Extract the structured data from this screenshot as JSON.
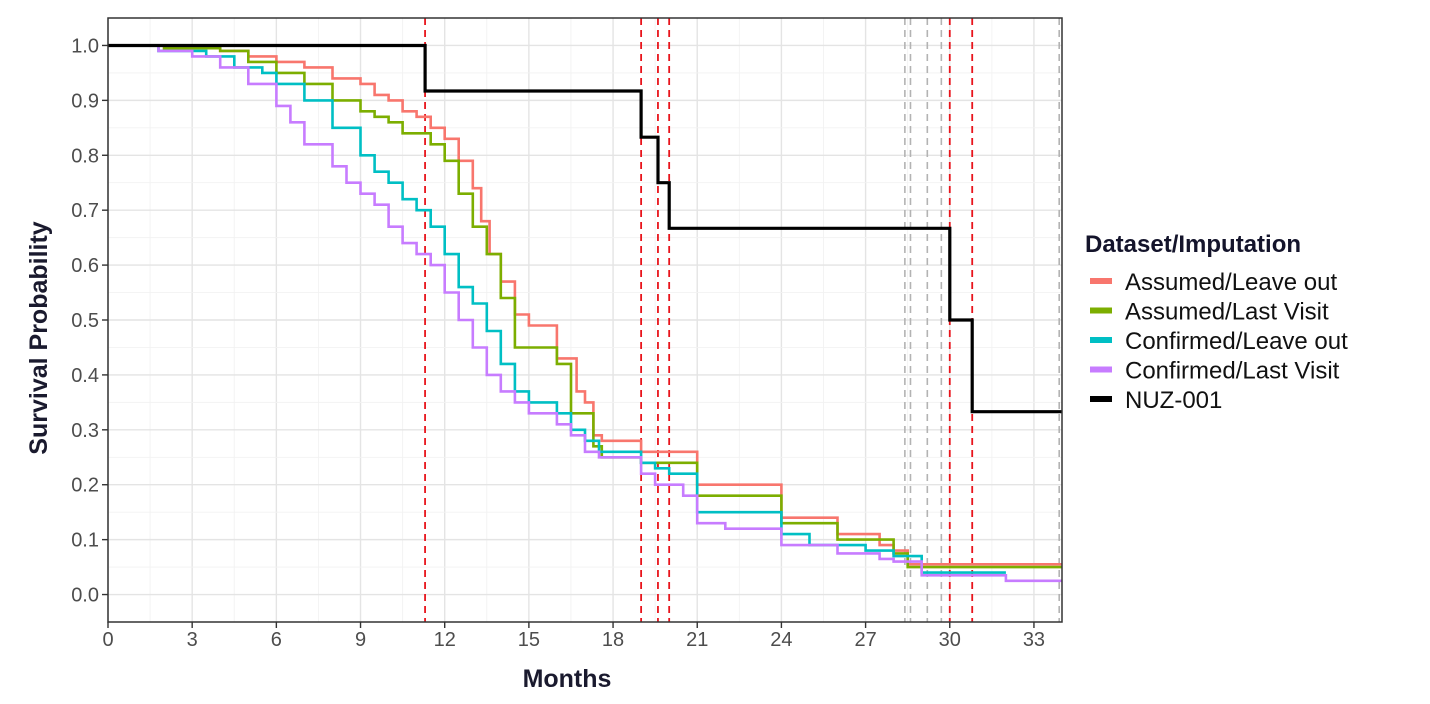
{
  "chart_data": {
    "type": "line",
    "subtype": "kaplan-meier step curves",
    "xlabel": "Months",
    "ylabel": "Survival Probability",
    "xlim": [
      0,
      34
    ],
    "ylim": [
      -0.05,
      1.05
    ],
    "xticks": [
      0,
      3,
      6,
      9,
      12,
      15,
      18,
      21,
      24,
      27,
      30,
      33
    ],
    "yticks": [
      0.0,
      0.1,
      0.2,
      0.3,
      0.4,
      0.5,
      0.6,
      0.7,
      0.8,
      0.9,
      1.0
    ],
    "ytick_labels": [
      "0.0",
      "0.1",
      "0.2",
      "0.3",
      "0.4",
      "0.5",
      "0.6",
      "0.7",
      "0.8",
      "0.9",
      "1.0"
    ],
    "grid": true,
    "legend_title": "Dataset/Imputation",
    "legend_position": "right",
    "series": [
      {
        "name": "Assumed/Leave out",
        "color": "#f8766d",
        "points": [
          [
            0,
            1.0
          ],
          [
            2,
            0.995
          ],
          [
            4,
            0.99
          ],
          [
            5,
            0.98
          ],
          [
            6,
            0.97
          ],
          [
            7,
            0.96
          ],
          [
            8,
            0.94
          ],
          [
            9,
            0.93
          ],
          [
            9.5,
            0.91
          ],
          [
            10,
            0.9
          ],
          [
            10.5,
            0.88
          ],
          [
            11,
            0.87
          ],
          [
            11.5,
            0.85
          ],
          [
            12,
            0.83
          ],
          [
            12.5,
            0.79
          ],
          [
            13,
            0.74
          ],
          [
            13.3,
            0.68
          ],
          [
            13.6,
            0.62
          ],
          [
            14,
            0.57
          ],
          [
            14.5,
            0.51
          ],
          [
            15,
            0.49
          ],
          [
            16,
            0.43
          ],
          [
            16.7,
            0.37
          ],
          [
            17,
            0.35
          ],
          [
            17.3,
            0.29
          ],
          [
            17.6,
            0.28
          ],
          [
            19,
            0.26
          ],
          [
            21,
            0.2
          ],
          [
            24,
            0.14
          ],
          [
            26,
            0.11
          ],
          [
            27.5,
            0.09
          ],
          [
            28,
            0.08
          ],
          [
            28.5,
            0.055
          ],
          [
            34,
            0.055
          ]
        ]
      },
      {
        "name": "Assumed/Last Visit",
        "color": "#7cae00",
        "points": [
          [
            0,
            1.0
          ],
          [
            2,
            0.995
          ],
          [
            4,
            0.99
          ],
          [
            5,
            0.97
          ],
          [
            6,
            0.95
          ],
          [
            7,
            0.93
          ],
          [
            8,
            0.9
          ],
          [
            9,
            0.88
          ],
          [
            9.5,
            0.87
          ],
          [
            10,
            0.86
          ],
          [
            10.5,
            0.84
          ],
          [
            11,
            0.84
          ],
          [
            11.5,
            0.82
          ],
          [
            12,
            0.79
          ],
          [
            12.5,
            0.73
          ],
          [
            13,
            0.67
          ],
          [
            13.5,
            0.62
          ],
          [
            14,
            0.54
          ],
          [
            14.5,
            0.45
          ],
          [
            16,
            0.42
          ],
          [
            16.5,
            0.33
          ],
          [
            17,
            0.33
          ],
          [
            17.3,
            0.27
          ],
          [
            17.6,
            0.25
          ],
          [
            19,
            0.24
          ],
          [
            20,
            0.24
          ],
          [
            21,
            0.18
          ],
          [
            24,
            0.13
          ],
          [
            26,
            0.1
          ],
          [
            28,
            0.075
          ],
          [
            28.5,
            0.05
          ],
          [
            34,
            0.05
          ]
        ]
      },
      {
        "name": "Confirmed/Leave out",
        "color": "#00bfc4",
        "points": [
          [
            0,
            1.0
          ],
          [
            1.8,
            0.99
          ],
          [
            3.5,
            0.98
          ],
          [
            4.5,
            0.96
          ],
          [
            5.5,
            0.95
          ],
          [
            6,
            0.93
          ],
          [
            7,
            0.9
          ],
          [
            8,
            0.85
          ],
          [
            9,
            0.8
          ],
          [
            9.5,
            0.77
          ],
          [
            10,
            0.75
          ],
          [
            10.5,
            0.72
          ],
          [
            11,
            0.7
          ],
          [
            11.5,
            0.67
          ],
          [
            12,
            0.62
          ],
          [
            12.5,
            0.56
          ],
          [
            13,
            0.53
          ],
          [
            13.5,
            0.48
          ],
          [
            14,
            0.42
          ],
          [
            14.5,
            0.37
          ],
          [
            15,
            0.35
          ],
          [
            16,
            0.33
          ],
          [
            16.5,
            0.3
          ],
          [
            17,
            0.28
          ],
          [
            17.5,
            0.26
          ],
          [
            19,
            0.24
          ],
          [
            19.5,
            0.23
          ],
          [
            20,
            0.22
          ],
          [
            21,
            0.15
          ],
          [
            24,
            0.11
          ],
          [
            25,
            0.09
          ],
          [
            27,
            0.08
          ],
          [
            28,
            0.07
          ],
          [
            29,
            0.04
          ],
          [
            32,
            0.04
          ]
        ]
      },
      {
        "name": "Confirmed/Last Visit",
        "color": "#c77cff",
        "points": [
          [
            0,
            1.0
          ],
          [
            1.8,
            0.99
          ],
          [
            3,
            0.98
          ],
          [
            4,
            0.96
          ],
          [
            5,
            0.93
          ],
          [
            6,
            0.89
          ],
          [
            6.5,
            0.86
          ],
          [
            7,
            0.82
          ],
          [
            8,
            0.78
          ],
          [
            8.5,
            0.75
          ],
          [
            9,
            0.73
          ],
          [
            9.5,
            0.71
          ],
          [
            10,
            0.67
          ],
          [
            10.5,
            0.64
          ],
          [
            11,
            0.62
          ],
          [
            11.5,
            0.6
          ],
          [
            12,
            0.55
          ],
          [
            12.5,
            0.5
          ],
          [
            13,
            0.45
          ],
          [
            13.5,
            0.4
          ],
          [
            14,
            0.37
          ],
          [
            14.5,
            0.35
          ],
          [
            15,
            0.33
          ],
          [
            16,
            0.31
          ],
          [
            16.5,
            0.29
          ],
          [
            17,
            0.26
          ],
          [
            17.5,
            0.25
          ],
          [
            19,
            0.22
          ],
          [
            19.5,
            0.2
          ],
          [
            20.5,
            0.18
          ],
          [
            21,
            0.13
          ],
          [
            22,
            0.12
          ],
          [
            24,
            0.09
          ],
          [
            26,
            0.075
          ],
          [
            27.5,
            0.065
          ],
          [
            28,
            0.06
          ],
          [
            29,
            0.035
          ],
          [
            32,
            0.025
          ],
          [
            34,
            0.025
          ]
        ]
      },
      {
        "name": "NUZ-001",
        "color": "#000000",
        "points": [
          [
            0,
            1.0
          ],
          [
            11.3,
            0.917
          ],
          [
            19,
            0.833
          ],
          [
            19.6,
            0.75
          ],
          [
            20,
            0.667
          ],
          [
            30,
            0.5
          ],
          [
            30.8,
            0.333
          ],
          [
            34,
            0.333
          ]
        ]
      }
    ],
    "reference_lines": {
      "red_dashed_x": [
        11.3,
        19.0,
        19.6,
        20.0,
        30.0,
        30.8
      ],
      "gray_dashed_x": [
        28.4,
        28.6,
        29.2,
        29.7,
        33.9
      ]
    }
  }
}
